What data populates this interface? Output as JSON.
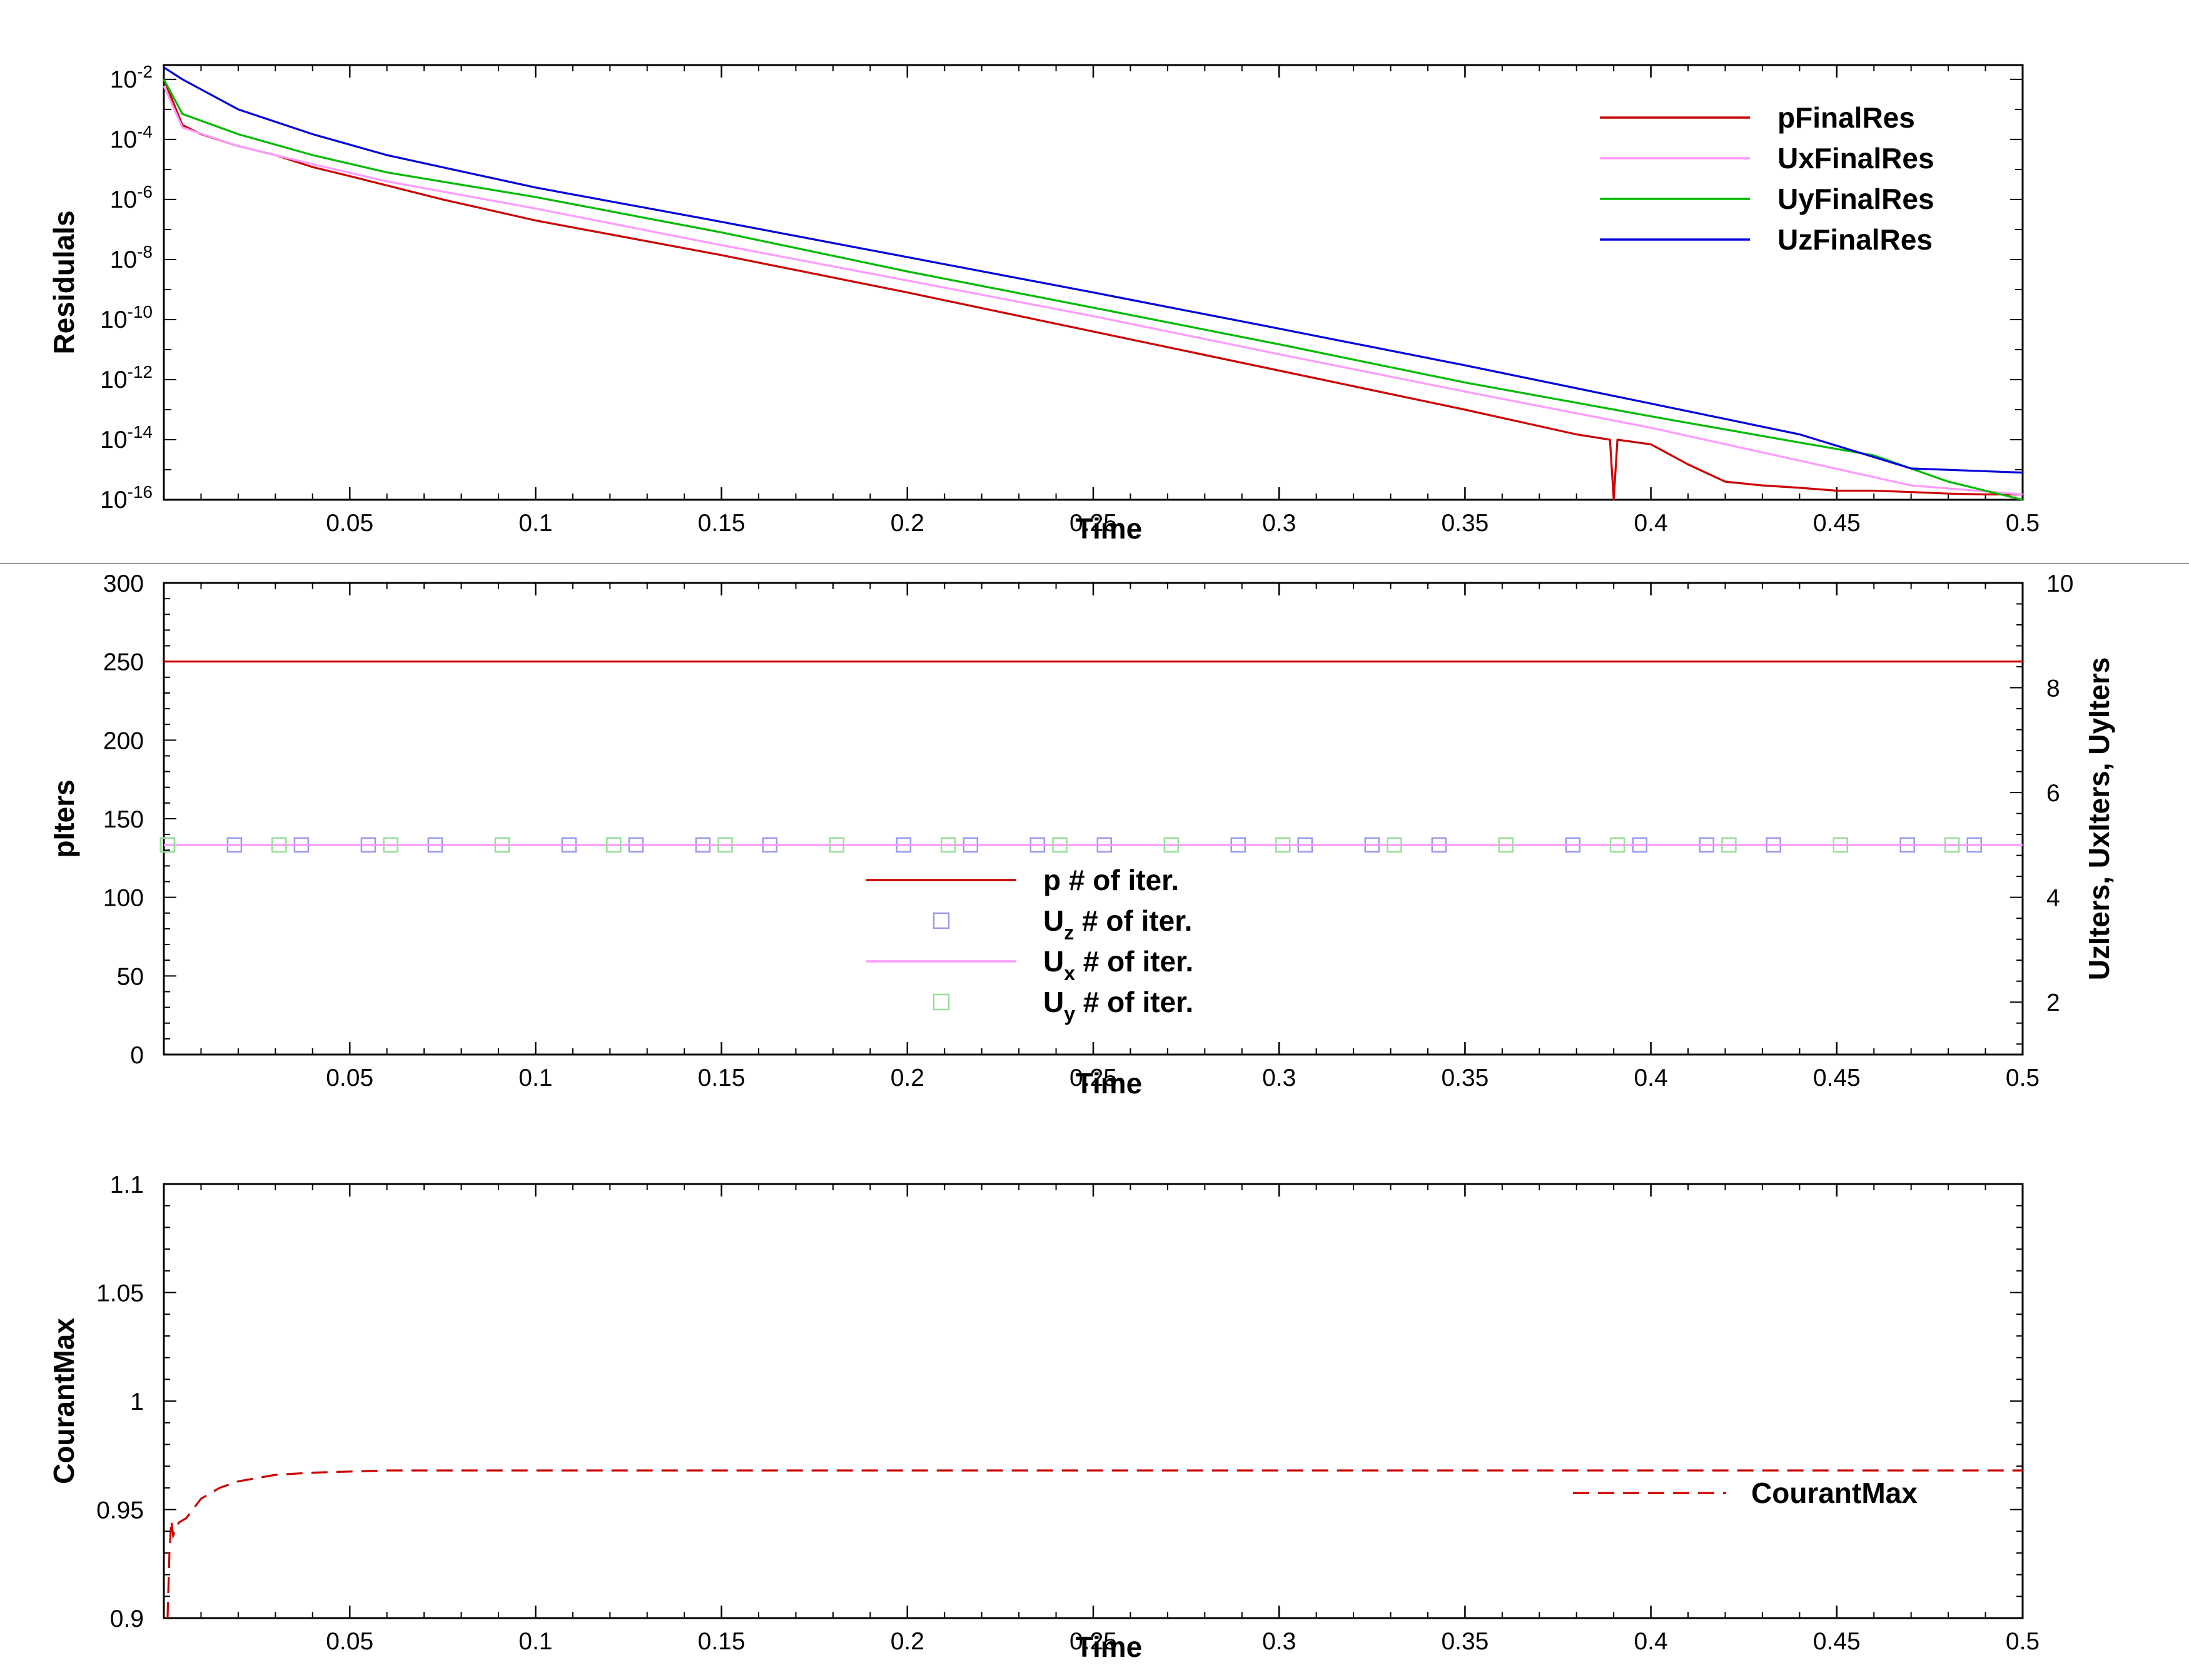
{
  "colors": {
    "p": "#cc0000",
    "Ux": "#ff99ff",
    "Uy": "#00bb00",
    "Uz": "#0000dd",
    "Uz_markers": "#9999ee",
    "Uy_markers": "#99dd99",
    "courant": "#cc0000",
    "separator": "#999999"
  },
  "chart_data": [
    {
      "type": "line",
      "id": "residuals",
      "xlabel": "Time",
      "ylabel": "Residulals",
      "xlim": [
        0,
        0.5
      ],
      "yscale": "log",
      "ylim": [
        1e-16,
        0.03
      ],
      "x_tick_labels": [
        "0.05",
        "0.1",
        "0.15",
        "0.2",
        "0.25",
        "0.3",
        "0.35",
        "0.4",
        "0.45",
        "0.5"
      ],
      "y_ticks": [
        {
          "base": "10",
          "exp": "-2"
        },
        {
          "base": "10",
          "exp": "-4"
        },
        {
          "base": "10",
          "exp": "-6"
        },
        {
          "base": "10",
          "exp": "-8"
        },
        {
          "base": "10",
          "exp": "-10"
        },
        {
          "base": "10",
          "exp": "-12"
        },
        {
          "base": "10",
          "exp": "-14"
        },
        {
          "base": "10",
          "exp": "-16"
        }
      ],
      "legend_position": "top-right",
      "grid": false,
      "series": [
        {
          "name": "pFinalRes",
          "key": "p",
          "style": "solid",
          "x": [
            0,
            0.005,
            0.01,
            0.02,
            0.03,
            0.04,
            0.05,
            0.075,
            0.1,
            0.15,
            0.2,
            0.25,
            0.3,
            0.35,
            0.38,
            0.389,
            0.39,
            0.391,
            0.4,
            0.41,
            0.42,
            0.43,
            0.44,
            0.45,
            0.46,
            0.47,
            0.48,
            0.49,
            0.5
          ],
          "y": [
            0.01,
            0.0003,
            0.00015,
            6e-05,
            3e-05,
            1.2e-05,
            6e-06,
            1e-06,
            2e-07,
            1.4e-08,
            8e-10,
            4e-11,
            2e-12,
            1e-13,
            1.5e-14,
            1e-14,
            1e-16,
            1e-14,
            7e-15,
            1.5e-15,
            4e-16,
            3e-16,
            2.5e-16,
            2e-16,
            2e-16,
            1.8e-16,
            1.6e-16,
            1.5e-16,
            1.5e-16
          ]
        },
        {
          "name": "UxFinalRes",
          "key": "Ux",
          "style": "solid",
          "x": [
            0,
            0.005,
            0.02,
            0.04,
            0.06,
            0.1,
            0.15,
            0.2,
            0.25,
            0.3,
            0.35,
            0.4,
            0.44,
            0.47,
            0.5
          ],
          "y": [
            0.006,
            0.00025,
            6e-05,
            1.5e-05,
            4e-06,
            5e-07,
            3e-08,
            2e-09,
            1.3e-10,
            7e-12,
            4e-13,
            2.5e-14,
            2e-15,
            3e-16,
            1.5e-16
          ]
        },
        {
          "name": "UyFinalRes",
          "key": "Uy",
          "style": "solid",
          "x": [
            0,
            0.005,
            0.02,
            0.04,
            0.06,
            0.1,
            0.15,
            0.2,
            0.25,
            0.3,
            0.35,
            0.4,
            0.44,
            0.46,
            0.48,
            0.5
          ],
          "y": [
            0.01,
            0.0007,
            0.00015,
            3e-05,
            8e-06,
            1.2e-06,
            8e-08,
            4e-09,
            2.5e-10,
            1.5e-11,
            8e-13,
            6e-14,
            8e-15,
            3e-15,
            4e-16,
            1e-16
          ]
        },
        {
          "name": "UzFinalRes",
          "key": "Uz",
          "style": "solid",
          "x": [
            0,
            0.005,
            0.02,
            0.04,
            0.06,
            0.1,
            0.15,
            0.2,
            0.25,
            0.3,
            0.35,
            0.4,
            0.44,
            0.47,
            0.5
          ],
          "y": [
            0.025,
            0.01,
            0.001,
            0.00015,
            3e-05,
            2.5e-06,
            1.8e-07,
            1.2e-08,
            8e-10,
            5e-11,
            3e-12,
            1.6e-13,
            1.5e-14,
            1.1e-15,
            8e-16
          ]
        }
      ]
    },
    {
      "type": "line",
      "id": "iterations",
      "xlabel": "Time",
      "ylabel": "pIters",
      "y2label": "UzIters, UxIters, UyIters",
      "xlim": [
        0,
        0.5
      ],
      "ylim": [
        0,
        300
      ],
      "y2lim": [
        1.0,
        10.0
      ],
      "x_tick_labels": [
        "0.05",
        "0.1",
        "0.15",
        "0.2",
        "0.25",
        "0.3",
        "0.35",
        "0.4",
        "0.45",
        "0.5"
      ],
      "y_tick_labels": [
        "0",
        "50",
        "100",
        "150",
        "200",
        "250",
        "300"
      ],
      "y2_tick_labels": [
        "2",
        "4",
        "6",
        "8",
        "10"
      ],
      "legend_position": "center-bottom",
      "grid": false,
      "series": [
        {
          "name_main": "p",
          "name_sub": "",
          "name_rest": " # of iter.",
          "key": "p",
          "style": "line",
          "x": [
            0,
            0.5
          ],
          "y": [
            250,
            250
          ],
          "axis": "left"
        },
        {
          "name_main": "U",
          "name_sub": "z",
          "name_rest": " # of iter.",
          "key": "Uz_markers",
          "style": "markers",
          "axis": "right",
          "x": [
            0.001,
            0.019,
            0.037,
            0.055,
            0.073,
            0.109,
            0.127,
            0.145,
            0.163,
            0.199,
            0.217,
            0.235,
            0.253,
            0.289,
            0.307,
            0.325,
            0.343,
            0.379,
            0.397,
            0.415,
            0.433,
            0.469,
            0.487
          ],
          "y_value": 5
        },
        {
          "name_main": "U",
          "name_sub": "x",
          "name_rest": " # of iter.",
          "key": "Ux",
          "style": "line",
          "x": [
            0,
            0.5
          ],
          "y": [
            5,
            5
          ],
          "axis": "right"
        },
        {
          "name_main": "U",
          "name_sub": "y",
          "name_rest": " # of iter.",
          "key": "Uy_markers",
          "style": "markers",
          "axis": "right",
          "x": [
            0.001,
            0.031,
            0.061,
            0.091,
            0.121,
            0.151,
            0.181,
            0.211,
            0.241,
            0.271,
            0.301,
            0.331,
            0.361,
            0.391,
            0.421,
            0.451,
            0.481
          ],
          "y_value": 5
        }
      ]
    },
    {
      "type": "line",
      "id": "courant",
      "xlabel": "Time",
      "ylabel": "CourantMax",
      "xlim": [
        0,
        0.5
      ],
      "ylim": [
        0.9,
        1.1
      ],
      "x_tick_labels": [
        "0.05",
        "0.1",
        "0.15",
        "0.2",
        "0.25",
        "0.3",
        "0.35",
        "0.4",
        "0.45",
        "0.5"
      ],
      "y_tick_labels": [
        "0.9",
        "0.95",
        "1",
        "1.05",
        "1.1"
      ],
      "legend_position": "lower-right",
      "grid": false,
      "series": [
        {
          "name": "CourantMax",
          "key": "courant",
          "style": "dashed",
          "x": [
            0.001,
            0.0015,
            0.002,
            0.0025,
            0.003,
            0.004,
            0.006,
            0.01,
            0.015,
            0.02,
            0.03,
            0.04,
            0.06,
            0.1,
            0.2,
            0.3,
            0.4,
            0.5
          ],
          "y": [
            0.9,
            0.93,
            0.945,
            0.938,
            0.94,
            0.944,
            0.946,
            0.955,
            0.96,
            0.963,
            0.966,
            0.967,
            0.968,
            0.968,
            0.968,
            0.968,
            0.968,
            0.968
          ]
        }
      ]
    }
  ]
}
